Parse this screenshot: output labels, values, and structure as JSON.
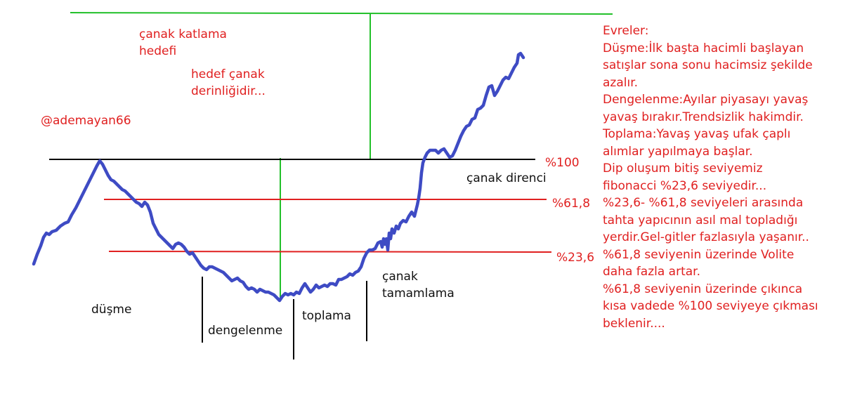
{
  "colors": {
    "price_line": "#3e4bc4",
    "resistance_line": "#000000",
    "fib_line": "#e02020",
    "target_line": "#22c02a",
    "phase_divider": "#000000",
    "annotation_text": "#e02020"
  },
  "annotations": {
    "target_title": [
      "çanak katlama",
      "hedefi"
    ],
    "target_depth": [
      "hedef çanak",
      "derinliğidir..."
    ],
    "author": "@ademayan66"
  },
  "levels": {
    "level_100": "%100",
    "level_100_name": "çanak direnci",
    "level_61_8": "%61,8",
    "level_23_6": "%23,6"
  },
  "phases": {
    "dusme": "düşme",
    "dengelenme": "dengelenme",
    "toplama": "toplama",
    "tamamlama": [
      "çanak",
      "tamamlama"
    ]
  },
  "notes": [
    "Evreler:",
    "Düşme:İlk başta hacimli başlayan",
    "satışlar sona sonu hacimsiz şekilde",
    "azalır.",
    "Dengelenme:Ayılar piyasayı yavaş",
    "yavaş bırakır.Trendsizlik hakimdir.",
    "Toplama:Yavaş yavaş ufak çaplı",
    "alımlar yapılmaya başlar.",
    "Dip oluşum bitiş seviyemiz",
    "fibonacci %23,6 seviyedir...",
    "%23,6- %61,8  seviyeleri arasında",
    "tahta yapıcının asıl mal topladığı",
    "yerdir.Gel-gitler fazlasıyla yaşanır..",
    "%61,8 seviyenin üzerinde Volite",
    "daha fazla artar.",
    "%61,8 seviyenin üzerinde çıkınca",
    "kısa vadede %100 seviyeye çıkması",
    "beklenir...."
  ]
}
